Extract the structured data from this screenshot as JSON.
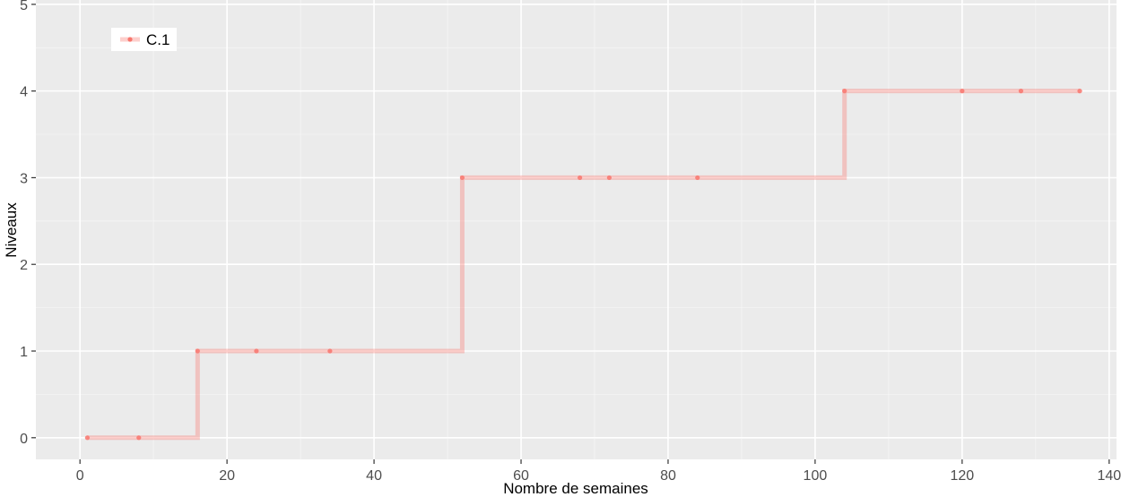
{
  "chart_data": {
    "type": "line",
    "title": "",
    "xlabel": "Nombre de semaines",
    "ylabel": "Niveaux",
    "xlim": [
      -6,
      141
    ],
    "ylim": [
      -0.25,
      5.05
    ],
    "x_ticks": [
      0,
      20,
      40,
      60,
      80,
      100,
      120,
      140
    ],
    "y_ticks": [
      0,
      1,
      2,
      3,
      4,
      5
    ],
    "grid": true,
    "legend_position": "top-left",
    "series": [
      {
        "name": "C.1",
        "color": "#F8766D",
        "step": true,
        "x": [
          1,
          8,
          16,
          24,
          34,
          52,
          68,
          72,
          84,
          104,
          120,
          128,
          136
        ],
        "y": [
          0,
          0,
          1,
          1,
          1,
          3,
          3,
          3,
          3,
          4,
          4,
          4,
          4
        ]
      }
    ]
  }
}
